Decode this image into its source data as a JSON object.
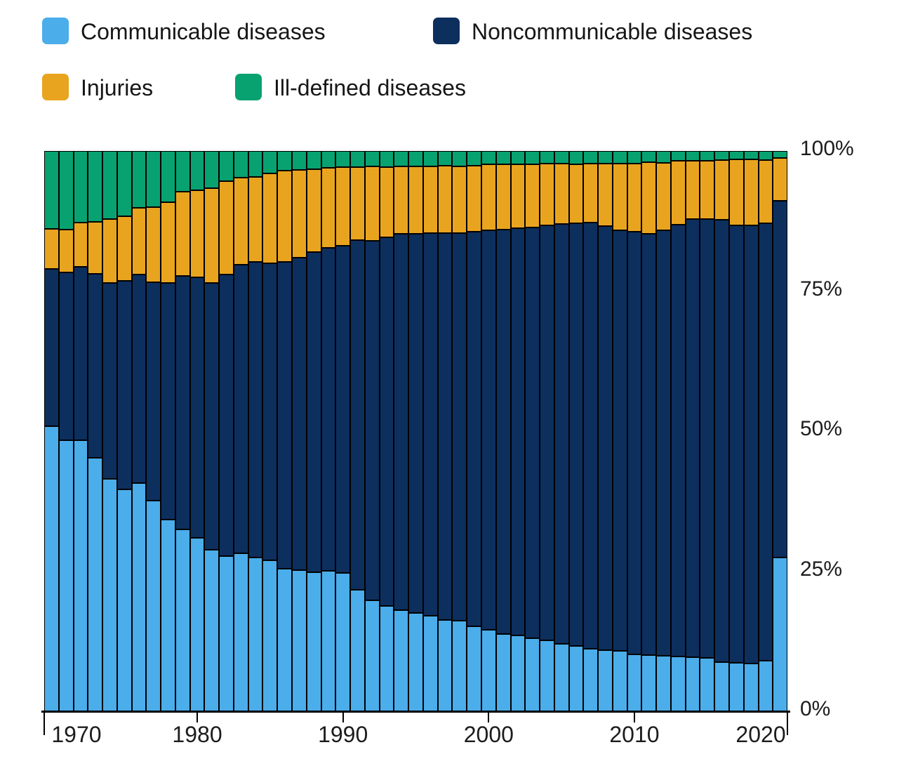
{
  "legend": {
    "items": [
      {
        "label": "Communicable diseases",
        "color": "#4badea"
      },
      {
        "label": "Noncommunicable diseases",
        "color": "#0d2f5e"
      },
      {
        "label": "Injuries",
        "color": "#e9a41f"
      },
      {
        "label": "Ill-defined diseases",
        "color": "#08a271"
      }
    ]
  },
  "y_axis": {
    "labels": [
      "100%",
      "75%",
      "50%",
      "25%",
      "0%"
    ],
    "values": [
      100,
      75,
      50,
      25,
      0
    ]
  },
  "x_axis": {
    "labels": [
      "1970",
      "1980",
      "1990",
      "2000",
      "2010",
      "2020"
    ],
    "label_years": [
      1970,
      1980,
      1990,
      2000,
      2010,
      2020
    ],
    "tick_years": [
      1980,
      1990,
      2000,
      2010
    ]
  },
  "chart_data": {
    "type": "bar",
    "stacked": true,
    "units": "percent of deaths",
    "grid": false,
    "legend_position": "top-left",
    "ylim": [
      0,
      100
    ],
    "x": [
      1970,
      1971,
      1972,
      1973,
      1974,
      1975,
      1976,
      1977,
      1978,
      1979,
      1980,
      1981,
      1982,
      1983,
      1984,
      1985,
      1986,
      1987,
      1988,
      1989,
      1990,
      1991,
      1992,
      1993,
      1994,
      1995,
      1996,
      1997,
      1998,
      1999,
      2000,
      2001,
      2002,
      2003,
      2004,
      2005,
      2006,
      2007,
      2008,
      2009,
      2010,
      2011,
      2012,
      2013,
      2014,
      2015,
      2016,
      2017,
      2018,
      2019,
      2020
    ],
    "series": [
      {
        "name": "Communicable diseases",
        "color": "#4badea",
        "values": [
          50.9,
          48.4,
          48.4,
          45.2,
          41.5,
          39.6,
          40.7,
          37.6,
          34.2,
          32.5,
          30.9,
          28.8,
          27.7,
          28.2,
          27.4,
          26.9,
          25.4,
          25.2,
          24.8,
          25.1,
          24.7,
          21.7,
          19.8,
          18.8,
          18.1,
          17.6,
          17.1,
          16.3,
          16.2,
          15.2,
          14.6,
          13.8,
          13.5,
          13.0,
          12.6,
          12.0,
          11.7,
          11.2,
          10.9,
          10.8,
          10.2,
          10.0,
          9.9,
          9.8,
          9.6,
          9.5,
          8.8,
          8.7,
          8.5,
          9.0,
          27.5
        ]
      },
      {
        "name": "Noncommunicable diseases",
        "color": "#0d2f5e",
        "values": [
          28.0,
          29.9,
          30.9,
          32.9,
          35.0,
          37.2,
          37.2,
          39.0,
          42.2,
          45.2,
          46.5,
          47.6,
          50.2,
          51.5,
          52.8,
          53.1,
          54.8,
          55.8,
          57.2,
          57.6,
          58.4,
          62.4,
          64.1,
          65.8,
          67.1,
          67.6,
          68.3,
          69.1,
          69.1,
          70.4,
          71.2,
          72.2,
          72.7,
          73.4,
          74.1,
          75.0,
          75.4,
          76.0,
          75.7,
          75.1,
          75.4,
          75.2,
          76.0,
          77.0,
          78.2,
          78.4,
          78.9,
          78.0,
          78.2,
          78.1,
          63.6
        ]
      },
      {
        "name": "Injuries",
        "color": "#e9a41f",
        "values": [
          7.2,
          7.7,
          7.9,
          9.2,
          11.3,
          11.5,
          11.9,
          13.4,
          14.4,
          15.0,
          15.6,
          16.9,
          16.7,
          15.5,
          15.2,
          16.0,
          16.3,
          15.6,
          14.8,
          14.3,
          14.0,
          13.0,
          13.3,
          12.5,
          12.0,
          12.1,
          11.8,
          12.0,
          12.0,
          11.8,
          11.8,
          11.6,
          11.4,
          11.2,
          11.0,
          10.7,
          10.5,
          10.5,
          11.1,
          11.8,
          12.1,
          12.8,
          12.0,
          11.4,
          10.4,
          10.4,
          10.7,
          11.8,
          11.8,
          11.3,
          7.6
        ]
      },
      {
        "name": "Ill-defined diseases",
        "color": "#08a271",
        "values": [
          13.9,
          14.0,
          12.8,
          12.7,
          12.2,
          11.7,
          10.2,
          10.0,
          9.2,
          7.3,
          7.0,
          6.7,
          5.4,
          4.8,
          4.6,
          4.0,
          3.5,
          3.4,
          3.2,
          3.0,
          2.9,
          2.9,
          2.8,
          2.9,
          2.8,
          2.7,
          2.8,
          2.6,
          2.7,
          2.6,
          2.4,
          2.4,
          2.4,
          2.4,
          2.3,
          2.3,
          2.4,
          2.3,
          2.3,
          2.3,
          2.3,
          2.0,
          2.1,
          1.8,
          1.8,
          1.7,
          1.6,
          1.5,
          1.5,
          1.6,
          1.3
        ]
      }
    ]
  }
}
